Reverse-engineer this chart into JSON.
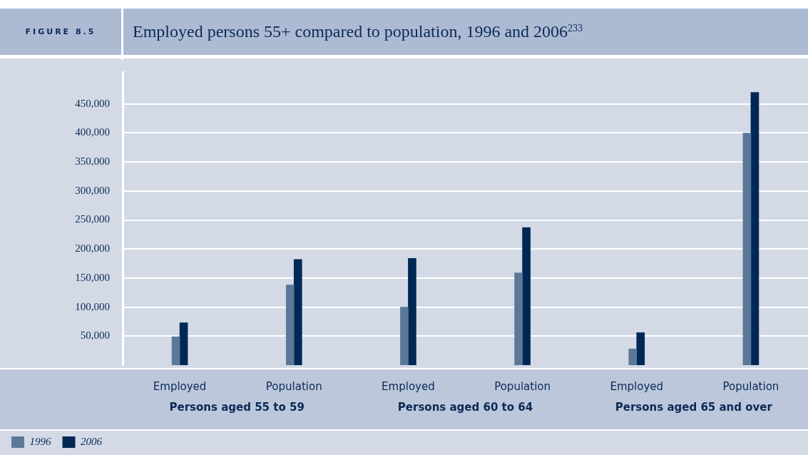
{
  "chart_data": {
    "type": "bar",
    "title": "Employed persons 55+ compared to population, 1996 and 2006$^{233}$",
    "subtitle": "FIGURE 8.5",
    "categories": [
      "Employed",
      "Population",
      "Employed",
      "Population",
      "Employed",
      "Population"
    ],
    "series": [
      {
        "name": "1996",
        "color": "#5b7899",
        "values": [
          49000,
          138000,
          100000,
          159000,
          28000,
          400000
        ]
      },
      {
        "name": "2006",
        "color": "#002855",
        "values": [
          73000,
          182000,
          184000,
          237000,
          56000,
          470000
        ]
      }
    ],
    "annotations": [
      "Persons aged 55 to 59",
      "Persons aged 60 to 64",
      "Persons aged 65 and over"
    ],
    "ylim": [
      0,
      505000
    ],
    "yticks": [
      {
        "value": 50000,
        "label": "50,000"
      },
      {
        "value": 100000,
        "label": "100,000"
      },
      {
        "value": 150000,
        "label": "150,000"
      },
      {
        "value": 200000,
        "label": "200,000"
      },
      {
        "value": 250000,
        "label": "250,000"
      },
      {
        "value": 300000,
        "label": "300,000"
      },
      {
        "value": 350000,
        "label": "350,000"
      },
      {
        "value": 400000,
        "label": "400,000"
      },
      {
        "value": 450000,
        "label": "450,000"
      }
    ],
    "grid": "y",
    "legend": "bottom left"
  }
}
